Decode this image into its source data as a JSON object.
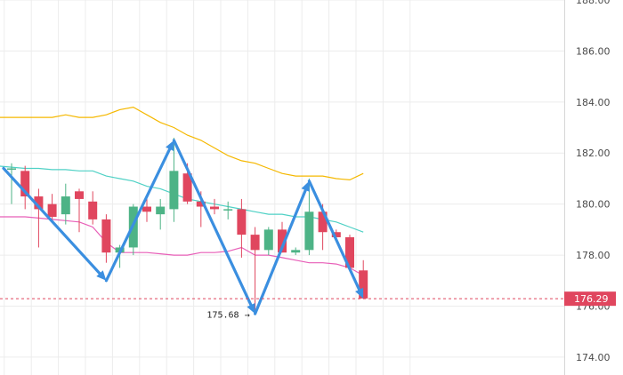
{
  "chart_data": {
    "type": "candlestick",
    "title": "",
    "xlabel": "",
    "ylabel": "",
    "ylim": [
      173.3,
      188.0
    ],
    "y_ticks": [
      "174.00",
      "176.00",
      "178.00",
      "180.00",
      "182.00",
      "184.00",
      "186.00",
      "188.00"
    ],
    "grid": true,
    "candles": [
      {
        "o": 181.4,
        "h": 181.6,
        "l": 180.0,
        "c": 181.4
      },
      {
        "o": 181.3,
        "h": 181.5,
        "l": 179.8,
        "c": 180.3
      },
      {
        "o": 180.3,
        "h": 180.6,
        "l": 178.3,
        "c": 179.8
      },
      {
        "o": 180.0,
        "h": 180.4,
        "l": 179.3,
        "c": 179.5
      },
      {
        "o": 179.6,
        "h": 180.8,
        "l": 179.2,
        "c": 180.3
      },
      {
        "o": 180.5,
        "h": 180.6,
        "l": 178.9,
        "c": 180.2
      },
      {
        "o": 180.1,
        "h": 180.5,
        "l": 179.2,
        "c": 179.4
      },
      {
        "o": 179.4,
        "h": 179.6,
        "l": 177.7,
        "c": 178.1
      },
      {
        "o": 178.1,
        "h": 178.4,
        "l": 177.5,
        "c": 178.3
      },
      {
        "o": 178.3,
        "h": 180.0,
        "l": 178.0,
        "c": 179.9
      },
      {
        "o": 179.9,
        "h": 180.3,
        "l": 179.3,
        "c": 179.7
      },
      {
        "o": 179.6,
        "h": 180.2,
        "l": 179.0,
        "c": 179.9
      },
      {
        "o": 179.8,
        "h": 182.6,
        "l": 179.3,
        "c": 181.3
      },
      {
        "o": 181.2,
        "h": 181.6,
        "l": 180.0,
        "c": 180.1
      },
      {
        "o": 180.1,
        "h": 180.5,
        "l": 179.1,
        "c": 179.9
      },
      {
        "o": 179.9,
        "h": 180.2,
        "l": 179.6,
        "c": 179.8
      },
      {
        "o": 179.8,
        "h": 180.1,
        "l": 179.4,
        "c": 179.8
      },
      {
        "o": 179.8,
        "h": 180.2,
        "l": 177.9,
        "c": 178.8
      },
      {
        "o": 178.8,
        "h": 179.1,
        "l": 175.7,
        "c": 178.2
      },
      {
        "o": 178.2,
        "h": 179.1,
        "l": 178.0,
        "c": 179.0
      },
      {
        "o": 179.0,
        "h": 179.3,
        "l": 178.1,
        "c": 178.1
      },
      {
        "o": 178.1,
        "h": 178.3,
        "l": 178.0,
        "c": 178.2
      },
      {
        "o": 178.2,
        "h": 181.0,
        "l": 178.0,
        "c": 179.7
      },
      {
        "o": 179.7,
        "h": 180.0,
        "l": 178.2,
        "c": 178.9
      },
      {
        "o": 178.9,
        "h": 179.0,
        "l": 178.6,
        "c": 178.7
      },
      {
        "o": 178.7,
        "h": 178.8,
        "l": 177.4,
        "c": 177.5
      },
      {
        "o": 177.4,
        "h": 177.8,
        "l": 176.3,
        "c": 176.3
      }
    ],
    "series": [
      {
        "kind": "upper-band",
        "color": "#f5b800",
        "values": [
          183.4,
          183.4,
          183.4,
          183.4,
          183.5,
          183.4,
          183.4,
          183.5,
          183.7,
          183.8,
          183.5,
          183.2,
          183.0,
          182.7,
          182.5,
          182.2,
          181.9,
          181.7,
          181.6,
          181.4,
          181.2,
          181.1,
          181.1,
          181.1,
          181.0,
          180.95,
          181.2
        ]
      },
      {
        "kind": "moving-average",
        "color": "#4fd1c5",
        "values": [
          181.5,
          181.4,
          181.4,
          181.35,
          181.35,
          181.3,
          181.3,
          181.1,
          181.0,
          180.9,
          180.7,
          180.6,
          180.4,
          180.2,
          180.1,
          180.0,
          179.9,
          179.8,
          179.7,
          179.6,
          179.6,
          179.5,
          179.5,
          179.4,
          179.3,
          179.1,
          178.9
        ]
      },
      {
        "kind": "lower-band",
        "color": "#e85fb8",
        "values": [
          179.5,
          179.5,
          179.45,
          179.4,
          179.35,
          179.3,
          179.1,
          178.5,
          178.1,
          178.1,
          178.1,
          178.05,
          178.0,
          178.0,
          178.1,
          178.1,
          178.15,
          178.3,
          178.0,
          178.0,
          177.9,
          177.8,
          177.7,
          177.7,
          177.65,
          177.5,
          177.2
        ]
      }
    ],
    "pattern_arrows": [
      {
        "from": {
          "i": 0,
          "y": 181.4
        },
        "to": {
          "i": 7,
          "y": 177.0
        }
      },
      {
        "from": {
          "i": 7,
          "y": 177.0
        },
        "to": {
          "i": 12,
          "y": 182.5
        }
      },
      {
        "from": {
          "i": 12,
          "y": 182.5
        },
        "to": {
          "i": 18,
          "y": 175.7
        }
      },
      {
        "from": {
          "i": 18,
          "y": 175.7
        },
        "to": {
          "i": 22,
          "y": 180.9
        }
      },
      {
        "from": {
          "i": 22,
          "y": 180.9
        },
        "to": {
          "i": 26,
          "y": 176.3
        }
      }
    ],
    "annotations": [
      {
        "label": "175.68 →",
        "i": 18,
        "y": 175.68
      }
    ],
    "current_price": {
      "value": 176.29,
      "label": "176.29",
      "color": "#e0465e"
    },
    "colors": {
      "up": "#4db386",
      "down": "#e0465e",
      "arrow": "#3b8fe0",
      "grid": "#ececec"
    }
  }
}
